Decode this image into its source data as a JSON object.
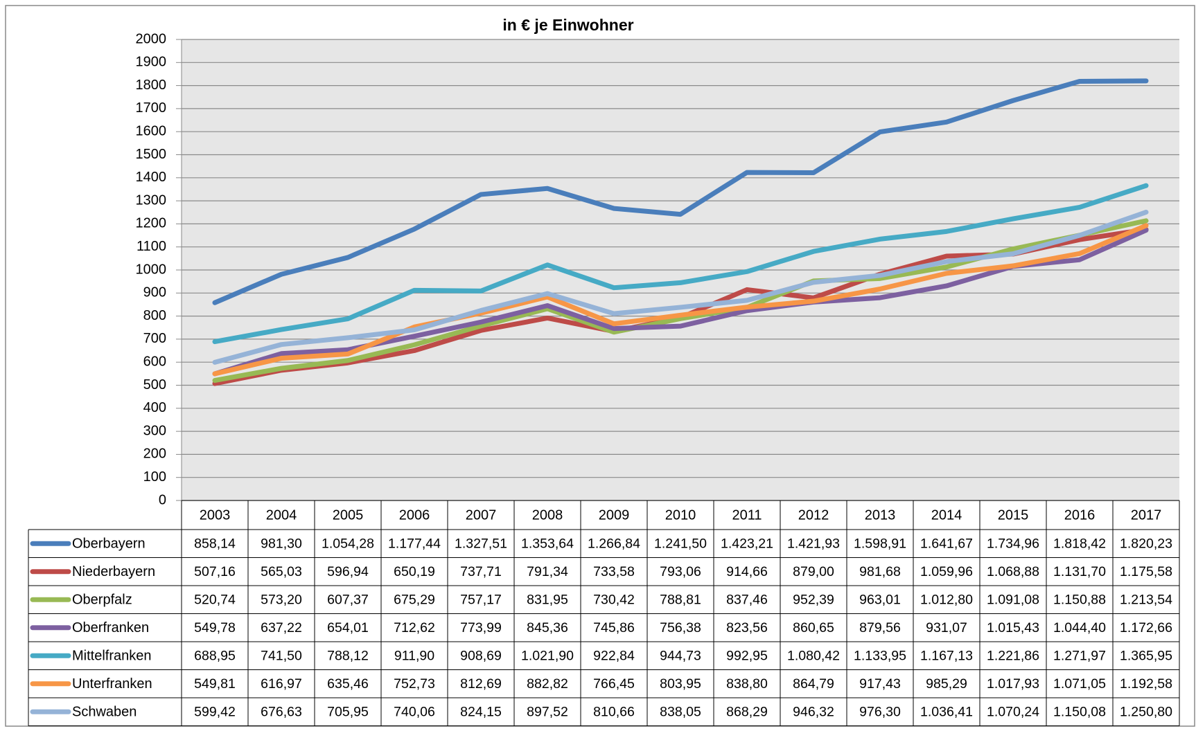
{
  "chart_data": {
    "type": "line",
    "title": "in € je Einwohner",
    "categories": [
      "2003",
      "2004",
      "2005",
      "2006",
      "2007",
      "2008",
      "2009",
      "2010",
      "2011",
      "2012",
      "2013",
      "2014",
      "2015",
      "2016",
      "2017"
    ],
    "ylim": [
      0,
      2000
    ],
    "yticks": [
      0,
      100,
      200,
      300,
      400,
      500,
      600,
      700,
      800,
      900,
      1000,
      1100,
      1200,
      1300,
      1400,
      1500,
      1600,
      1700,
      1800,
      1900,
      2000
    ],
    "grid": true,
    "series": [
      {
        "name": "Oberbayern",
        "color": "#4a7ebb",
        "values": [
          858.14,
          981.3,
          1054.28,
          1177.44,
          1327.51,
          1353.64,
          1266.84,
          1241.5,
          1423.21,
          1421.93,
          1598.91,
          1641.67,
          1734.96,
          1818.42,
          1820.23
        ],
        "value_labels": [
          "858,14",
          "981,30",
          "1.054,28",
          "1.177,44",
          "1.327,51",
          "1.353,64",
          "1.266,84",
          "1.241,50",
          "1.423,21",
          "1.421,93",
          "1.598,91",
          "1.641,67",
          "1.734,96",
          "1.818,42",
          "1.820,23"
        ]
      },
      {
        "name": "Niederbayern",
        "color": "#be4b48",
        "values": [
          507.16,
          565.03,
          596.94,
          650.19,
          737.71,
          791.34,
          733.58,
          793.06,
          914.66,
          879.0,
          981.68,
          1059.96,
          1068.88,
          1131.7,
          1175.58
        ],
        "value_labels": [
          "507,16",
          "565,03",
          "596,94",
          "650,19",
          "737,71",
          "791,34",
          "733,58",
          "793,06",
          "914,66",
          "879,00",
          "981,68",
          "1.059,96",
          "1.068,88",
          "1.131,70",
          "1.175,58"
        ]
      },
      {
        "name": "Oberpfalz",
        "color": "#98b954",
        "values": [
          520.74,
          573.2,
          607.37,
          675.29,
          757.17,
          831.95,
          730.42,
          788.81,
          837.46,
          952.39,
          963.01,
          1012.8,
          1091.08,
          1150.88,
          1213.54
        ],
        "value_labels": [
          "520,74",
          "573,20",
          "607,37",
          "675,29",
          "757,17",
          "831,95",
          "730,42",
          "788,81",
          "837,46",
          "952,39",
          "963,01",
          "1.012,80",
          "1.091,08",
          "1.150,88",
          "1.213,54"
        ]
      },
      {
        "name": "Oberfranken",
        "color": "#7d60a0",
        "values": [
          549.78,
          637.22,
          654.01,
          712.62,
          773.99,
          845.36,
          745.86,
          756.38,
          823.56,
          860.65,
          879.56,
          931.07,
          1015.43,
          1044.4,
          1172.66
        ],
        "value_labels": [
          "549,78",
          "637,22",
          "654,01",
          "712,62",
          "773,99",
          "845,36",
          "745,86",
          "756,38",
          "823,56",
          "860,65",
          "879,56",
          "931,07",
          "1.015,43",
          "1.044,40",
          "1.172,66"
        ]
      },
      {
        "name": "Mittelfranken",
        "color": "#46aac5",
        "values": [
          688.95,
          741.5,
          788.12,
          911.9,
          908.69,
          1021.9,
          922.84,
          944.73,
          992.95,
          1080.42,
          1133.95,
          1167.13,
          1221.86,
          1271.97,
          1365.95
        ],
        "value_labels": [
          "688,95",
          "741,50",
          "788,12",
          "911,90",
          "908,69",
          "1.021,90",
          "922,84",
          "944,73",
          "992,95",
          "1.080,42",
          "1.133,95",
          "1.167,13",
          "1.221,86",
          "1.271,97",
          "1.365,95"
        ]
      },
      {
        "name": "Unterfranken",
        "color": "#f79646",
        "values": [
          549.81,
          616.97,
          635.46,
          752.73,
          812.69,
          882.82,
          766.45,
          803.95,
          838.8,
          864.79,
          917.43,
          985.29,
          1017.93,
          1071.05,
          1192.58
        ],
        "value_labels": [
          "549,81",
          "616,97",
          "635,46",
          "752,73",
          "812,69",
          "882,82",
          "766,45",
          "803,95",
          "838,80",
          "864,79",
          "917,43",
          "985,29",
          "1.017,93",
          "1.071,05",
          "1.192,58"
        ]
      },
      {
        "name": "Schwaben",
        "color": "#95b3d7",
        "values": [
          599.42,
          676.63,
          705.95,
          740.06,
          824.15,
          897.52,
          810.66,
          838.05,
          868.29,
          946.32,
          976.3,
          1036.41,
          1070.24,
          1150.08,
          1250.8
        ],
        "value_labels": [
          "599,42",
          "676,63",
          "705,95",
          "740,06",
          "824,15",
          "897,52",
          "810,66",
          "838,05",
          "868,29",
          "946,32",
          "976,30",
          "1.036,41",
          "1.070,24",
          "1.150,08",
          "1.250,80"
        ]
      }
    ]
  }
}
